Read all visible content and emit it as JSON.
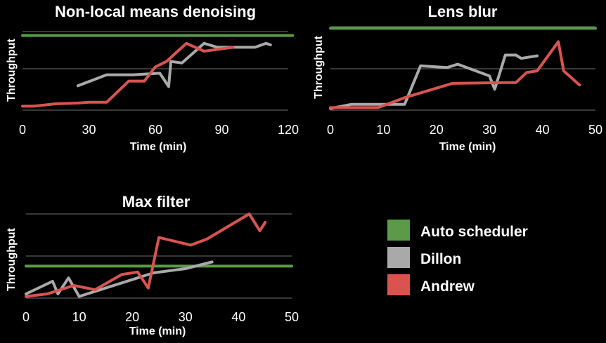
{
  "chart_data": [
    {
      "type": "line",
      "title": "Non-local means denoising",
      "xlabel": "Time (min)",
      "ylabel": "Throughput",
      "xlim": [
        0,
        120
      ],
      "xticks": [
        "0",
        "30",
        "60",
        "90",
        "120"
      ],
      "grid": true,
      "series": [
        {
          "name": "Auto scheduler",
          "color": "#5a9a48",
          "x": [
            0,
            122
          ],
          "values": [
            0.95,
            0.95
          ]
        },
        {
          "name": "Dillon",
          "color": "#a9a9a9",
          "x": [
            25,
            38,
            50,
            62,
            66,
            67,
            72,
            82,
            88,
            105,
            110,
            112
          ],
          "values": [
            0.31,
            0.45,
            0.45,
            0.47,
            0.3,
            0.62,
            0.6,
            0.85,
            0.8,
            0.8,
            0.85,
            0.83
          ]
        },
        {
          "name": "Andrew",
          "color": "#d9534f",
          "x": [
            0,
            5,
            15,
            25,
            30,
            38,
            48,
            55,
            60,
            65,
            74,
            82,
            95
          ],
          "values": [
            0.05,
            0.05,
            0.08,
            0.09,
            0.1,
            0.1,
            0.37,
            0.37,
            0.55,
            0.62,
            0.85,
            0.75,
            0.8
          ]
        }
      ]
    },
    {
      "type": "line",
      "title": "Lens blur",
      "xlabel": "",
      "ylabel": "Throughput",
      "xlim": [
        0,
        50
      ],
      "xticks": [
        "0",
        "10",
        "20",
        "30",
        "40",
        "50"
      ],
      "grid": true,
      "series": [
        {
          "name": "Auto scheduler",
          "color": "#5a9a48",
          "x": [
            0,
            50
          ],
          "values": [
            0.98,
            0.98
          ]
        },
        {
          "name": "Dillon",
          "color": "#a9a9a9",
          "x": [
            0,
            4,
            9,
            14,
            17,
            22,
            24,
            30,
            31,
            33,
            35,
            36,
            39
          ],
          "values": [
            0.02,
            0.07,
            0.07,
            0.07,
            0.53,
            0.51,
            0.55,
            0.41,
            0.25,
            0.66,
            0.66,
            0.62,
            0.65
          ]
        },
        {
          "name": "Andrew",
          "color": "#d9534f",
          "x": [
            0,
            9,
            14,
            23,
            33,
            35,
            37,
            39,
            43,
            44,
            47
          ],
          "values": [
            0.03,
            0.03,
            0.15,
            0.32,
            0.33,
            0.33,
            0.45,
            0.47,
            0.82,
            0.47,
            0.3
          ]
        }
      ]
    },
    {
      "type": "line",
      "title": "Max filter",
      "xlabel": "Time (min)",
      "ylabel": "Throughput",
      "xlim": [
        0,
        50
      ],
      "xticks": [
        "0",
        "10",
        "20",
        "30",
        "40",
        "50"
      ],
      "grid": true,
      "series": [
        {
          "name": "Auto scheduler",
          "color": "#5a9a48",
          "x": [
            0,
            50
          ],
          "values": [
            0.38,
            0.38
          ]
        },
        {
          "name": "Dillon",
          "color": "#a9a9a9",
          "x": [
            0,
            5,
            6,
            8,
            10,
            24,
            30,
            35
          ],
          "values": [
            0.05,
            0.2,
            0.05,
            0.24,
            0.02,
            0.3,
            0.35,
            0.43
          ]
        },
        {
          "name": "Andrew",
          "color": "#d9534f",
          "x": [
            0,
            4,
            9,
            13,
            18,
            21,
            23,
            25,
            31,
            34,
            42,
            44,
            45
          ],
          "values": [
            0.02,
            0.05,
            0.15,
            0.1,
            0.28,
            0.31,
            0.12,
            0.72,
            0.63,
            0.7,
            1.0,
            0.8,
            0.9
          ]
        }
      ]
    }
  ],
  "legend": {
    "items": [
      {
        "label": "Auto scheduler",
        "color": "#5a9a48"
      },
      {
        "label": "Dillon",
        "color": "#a9a9a9"
      },
      {
        "label": "Andrew",
        "color": "#d9534f"
      }
    ]
  }
}
